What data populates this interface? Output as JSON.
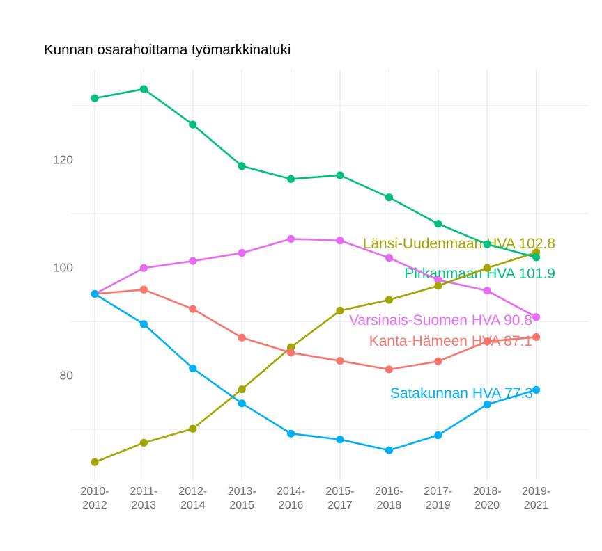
{
  "chart_data": {
    "type": "line",
    "title": "Kunnan osarahoittama työmarkkinatuki",
    "xlabel": "",
    "ylabel": "",
    "grid": "horizontal lines at 70/90/110/130 and vertical line per category",
    "legend_position": "series labels annotated at right end of lines",
    "ylim": [
      61,
      136
    ],
    "y_ticks": [
      "120",
      "100",
      "80"
    ],
    "y_tick_values": [
      120,
      100,
      80
    ],
    "grid_values": [
      130,
      110,
      90,
      70
    ],
    "categories": [
      "2010-2012",
      "2011-2013",
      "2012-2014",
      "2013-2015",
      "2014-2016",
      "2015-2017",
      "2016-2018",
      "2017-2019",
      "2018-2020",
      "2019-2021"
    ],
    "series": [
      {
        "name": "Varsinais-Suomen HVA",
        "color": "#E76BF3",
        "end_label": "Varsinais-Suomen HVA 90.8",
        "end_value": 90.8,
        "values": [
          95.1,
          99.9,
          101.2,
          102.7,
          105.3,
          105.0,
          101.8,
          97.7,
          95.7,
          90.8
        ]
      },
      {
        "name": "Länsi-Uudenmaan HVA",
        "color": "#A3A500",
        "end_label": "Länsi-Uudenmaan HVA 102.8",
        "end_value": 102.8,
        "values": [
          63.9,
          67.5,
          70.1,
          77.4,
          85.2,
          92.0,
          94.0,
          96.6,
          99.9,
          102.8
        ]
      },
      {
        "name": "Kanta-Hämeen HVA",
        "color": "#F8766D",
        "end_label": "Kanta-Hämeen HVA 87.1",
        "end_value": 87.1,
        "values": [
          95.1,
          95.9,
          92.3,
          87.0,
          84.2,
          82.7,
          81.1,
          82.6,
          86.3,
          87.1
        ]
      },
      {
        "name": "Pirkanmaan HVA",
        "color": "#00BF7D",
        "end_label": "Pirkanmaan HVA 101.9",
        "end_value": 101.9,
        "values": [
          131.4,
          133.1,
          126.5,
          118.8,
          116.4,
          117.1,
          113.0,
          108.1,
          104.3,
          101.9
        ]
      },
      {
        "name": "Satakunnan HVA",
        "color": "#00B0F6",
        "end_label": "Satakunnan HVA 77.3",
        "end_value": 77.3,
        "values": [
          95.1,
          89.5,
          81.3,
          74.8,
          69.2,
          68.1,
          66.1,
          68.9,
          74.6,
          77.3
        ]
      }
    ],
    "colors": {
      "title_text": "#1c1c1c",
      "axis_text": "#6e6e6e",
      "gridline": "#e3e3e3",
      "background": "#ffffff"
    }
  }
}
